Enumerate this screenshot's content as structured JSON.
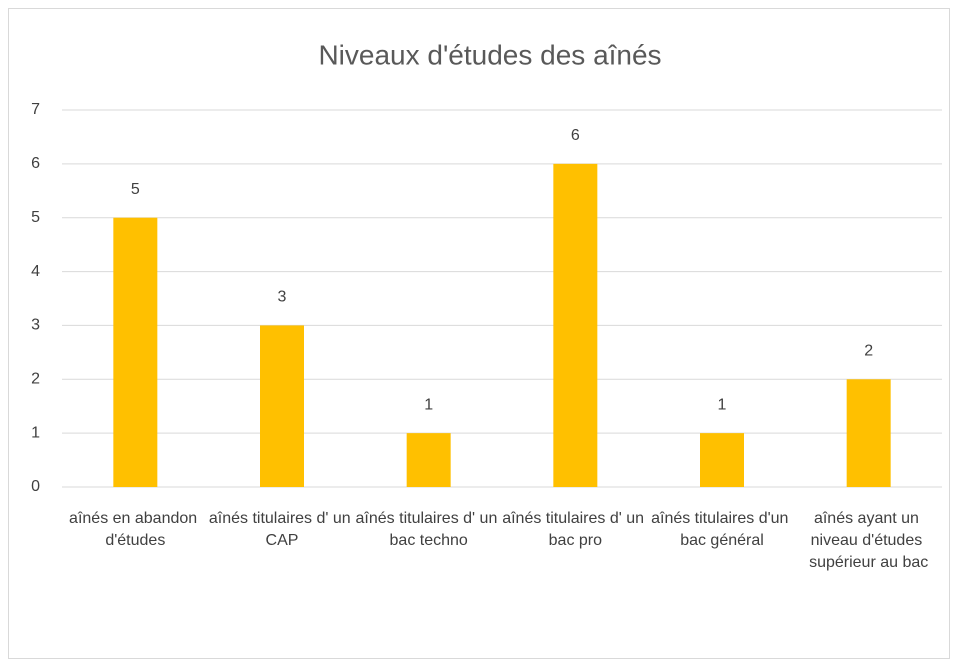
{
  "chart_data": {
    "type": "bar",
    "title": "Niveaux d'études des aînés",
    "categories": [
      "aînés en abandon d'études",
      "aînés titulaires d' un CAP",
      "aînés titulaires d' un bac techno",
      "aînés titulaires d' un bac pro",
      "aînés titulaires d'un bac général",
      "aînés ayant un niveau d'études supérieur au bac"
    ],
    "values": [
      5,
      3,
      1,
      6,
      1,
      2
    ],
    "color": "#ffc000",
    "ylim": [
      0,
      7
    ],
    "yticks": [
      0,
      1,
      2,
      3,
      4,
      5,
      6,
      7
    ],
    "grid": true
  }
}
